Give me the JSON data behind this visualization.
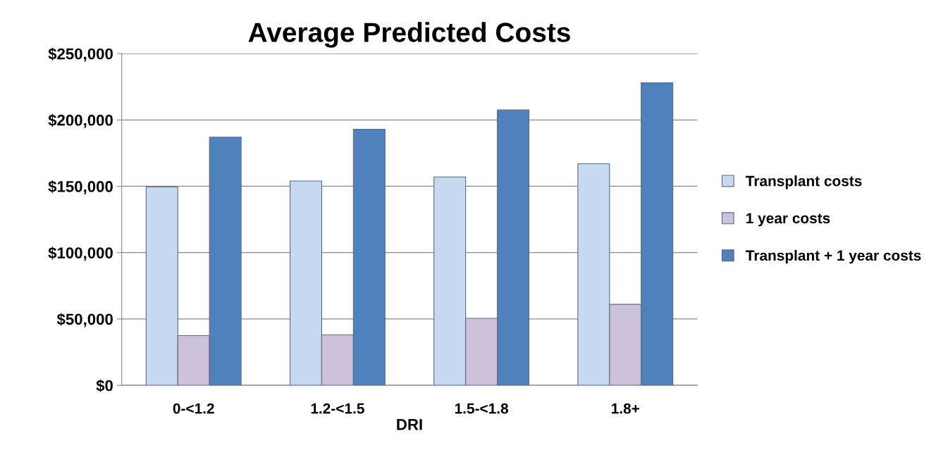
{
  "chart_data": {
    "type": "bar",
    "title": "Average Predicted Costs",
    "xlabel": "DRI",
    "categories": [
      "0-<1.2",
      "1.2-<1.5",
      "1.5-<1.8",
      "1.8+"
    ],
    "series": [
      {
        "name": "Transplant costs",
        "color": "#c6d9f1",
        "values": [
          149500,
          154000,
          157000,
          167000
        ]
      },
      {
        "name": "1 year costs",
        "color": "#ccc1da",
        "values": [
          37500,
          38000,
          50500,
          61000
        ]
      },
      {
        "name": "Transplant + 1 year costs",
        "color": "#4f81bd",
        "values": [
          187000,
          193000,
          207500,
          228000
        ]
      }
    ],
    "ylim": [
      0,
      250000
    ],
    "yticks": [
      {
        "value": 0,
        "label": "$0"
      },
      {
        "value": 50000,
        "label": "$50,000"
      },
      {
        "value": 100000,
        "label": "$100,000"
      },
      {
        "value": 150000,
        "label": "$150,000"
      },
      {
        "value": 200000,
        "label": "$200,000"
      },
      {
        "value": 250000,
        "label": "$250,000"
      }
    ],
    "grid": "y",
    "legend": "right"
  }
}
